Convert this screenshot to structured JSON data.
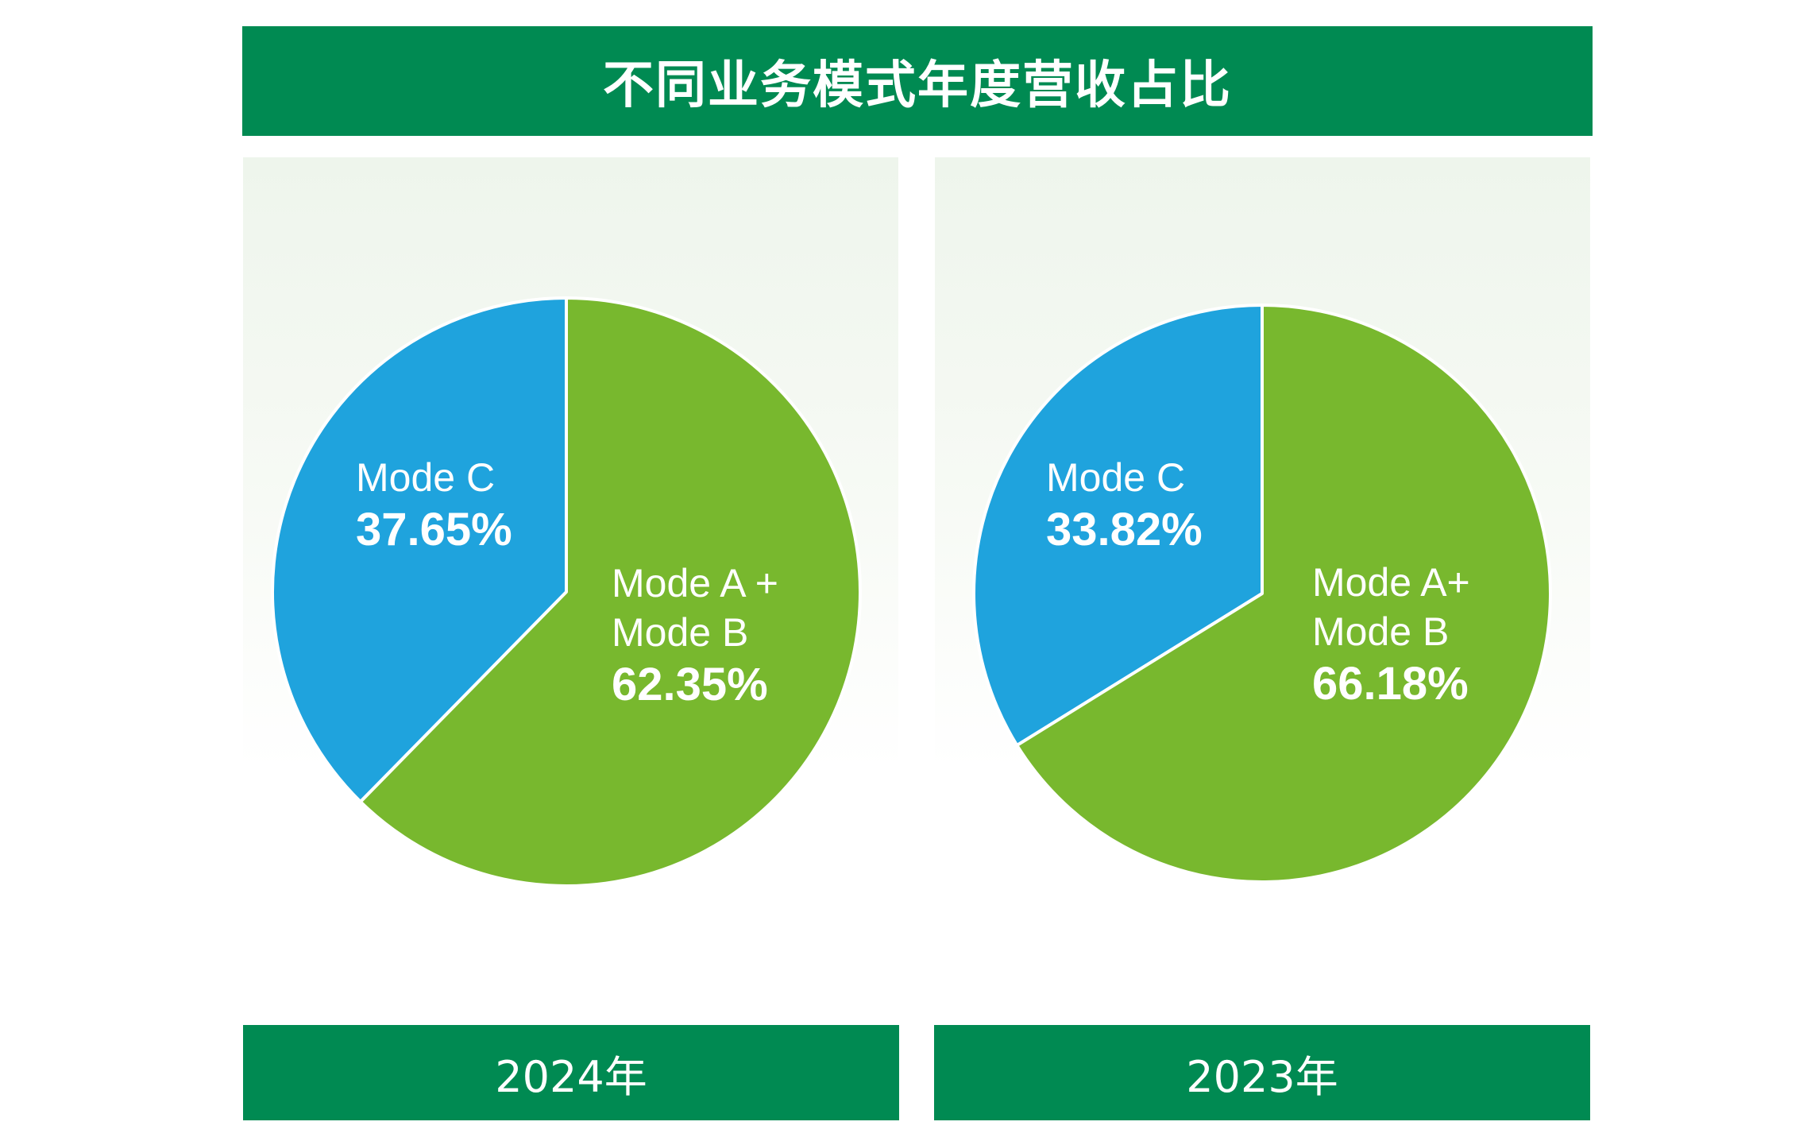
{
  "title": "不同业务模式年度营收占比",
  "colors": {
    "header": "#008a52",
    "mode_c": "#1fa3dd",
    "mode_ab": "#78b82e"
  },
  "chart_data": [
    {
      "type": "pie",
      "year_label": "2024年",
      "slices": [
        {
          "label_lines": [
            "Mode C"
          ],
          "value_text": "37.65%",
          "value": 37.65,
          "color": "#1fa3dd"
        },
        {
          "label_lines": [
            "Mode A +",
            "Mode B"
          ],
          "value_text": "62.35%",
          "value": 62.35,
          "color": "#78b82e"
        }
      ]
    },
    {
      "type": "pie",
      "year_label": "2023年",
      "slices": [
        {
          "label_lines": [
            "Mode C"
          ],
          "value_text": "33.82%",
          "value": 33.82,
          "color": "#1fa3dd"
        },
        {
          "label_lines": [
            "Mode A+",
            "Mode B"
          ],
          "value_text": "66.18%",
          "value": 66.18,
          "color": "#78b82e"
        }
      ]
    }
  ]
}
